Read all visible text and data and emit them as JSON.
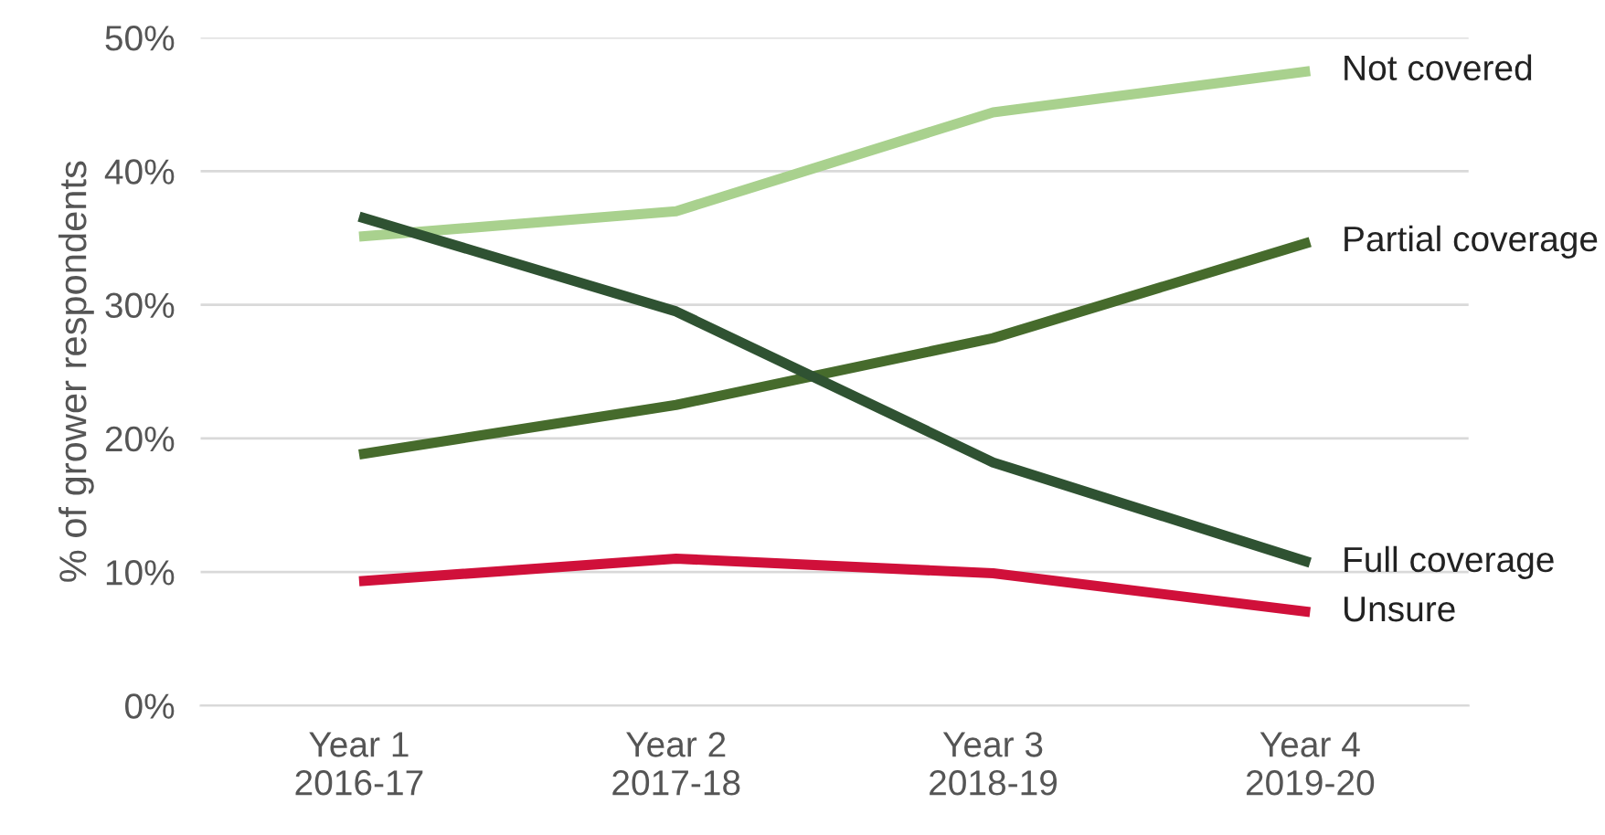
{
  "chart_data": {
    "type": "line",
    "ylabel": "% of grower respondents",
    "categories": [
      "Year 1\n2016-17",
      "Year 2\n2017-18",
      "Year 3\n2018-19",
      "Year 4\n2019-20"
    ],
    "series": [
      {
        "name": "Not covered",
        "color": "#a9d18e",
        "values": [
          35.1,
          37.0,
          44.4,
          47.5
        ]
      },
      {
        "name": "Partial coverage",
        "color": "#466b2c",
        "values": [
          18.8,
          22.5,
          27.5,
          34.7
        ]
      },
      {
        "name": "Full coverage",
        "color": "#2f5232",
        "values": [
          36.6,
          29.5,
          18.2,
          10.7
        ]
      },
      {
        "name": "Unsure",
        "color": "#d0103a",
        "values": [
          9.3,
          11.0,
          9.9,
          7.0
        ]
      }
    ],
    "ylim": [
      0,
      50
    ],
    "yticks": [
      {
        "value": 0,
        "label": "0%"
      },
      {
        "value": 10,
        "label": "10%"
      },
      {
        "value": 20,
        "label": "20%"
      },
      {
        "value": 30,
        "label": "30%"
      },
      {
        "value": 40,
        "label": "40%"
      },
      {
        "value": 50,
        "label": "50%"
      }
    ],
    "grid": "y",
    "legend": false,
    "marker": "none",
    "line_style": "solid"
  }
}
